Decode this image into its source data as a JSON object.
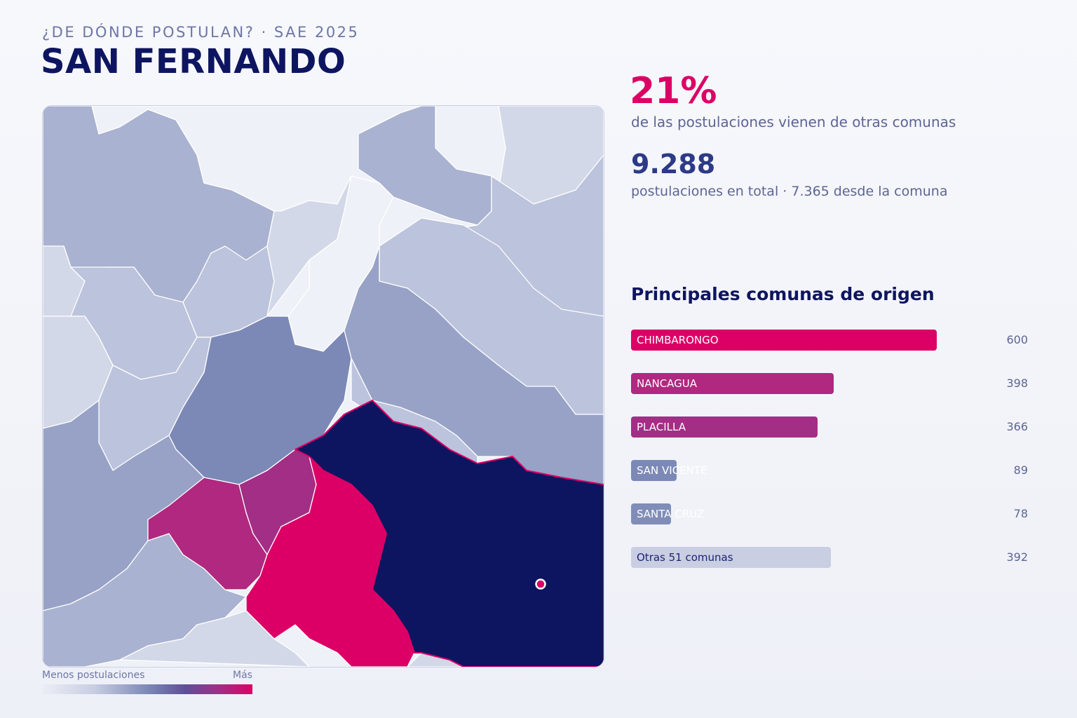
{
  "header": {
    "kicker": "¿DE DÓNDE POSTULAN? · SAE 2025",
    "title": "SAN FERNANDO"
  },
  "stats": {
    "pct_value": "21%",
    "pct_caption": "de las postulaciones vienen de otras comunas",
    "total_value": "9.288",
    "total_caption": "postulaciones en total · 7.365 desde la comuna"
  },
  "origins": {
    "title": "Principales comunas de origen",
    "max_value": 600,
    "items": [
      {
        "label": "CHIMBARONGO",
        "value": 600,
        "value_text": "600",
        "color": "#dc0066"
      },
      {
        "label": "NANCAGUA",
        "value": 398,
        "value_text": "398",
        "color": "#b0287f"
      },
      {
        "label": "PLACILLA",
        "value": 366,
        "value_text": "366",
        "color": "#a32e85"
      },
      {
        "label": "SAN VICENTE",
        "value": 89,
        "value_text": "89",
        "color": "#7c89b6"
      },
      {
        "label": "SANTA CRUZ",
        "value": 78,
        "value_text": "78",
        "color": "#808db8"
      },
      {
        "label": "Otras 51 comunas",
        "value": 392,
        "value_text": "392",
        "color": "#c9cee3",
        "dark_label": true
      }
    ]
  },
  "legend": {
    "min_label": "Menos postulaciones",
    "max_label": "Más"
  },
  "map": {
    "colors": {
      "home": "#0d1560",
      "highest": "#dc0066",
      "high": "#a32e85",
      "high_alt": "#b0287f",
      "mid": "#7c89b6",
      "mid_light": "#97a2c6",
      "light": "#a9b2d0",
      "lighter": "#bcc3dc",
      "faint": "#d3d8e8",
      "empty": "#eef1f7",
      "marker": "#dc0066"
    }
  }
}
